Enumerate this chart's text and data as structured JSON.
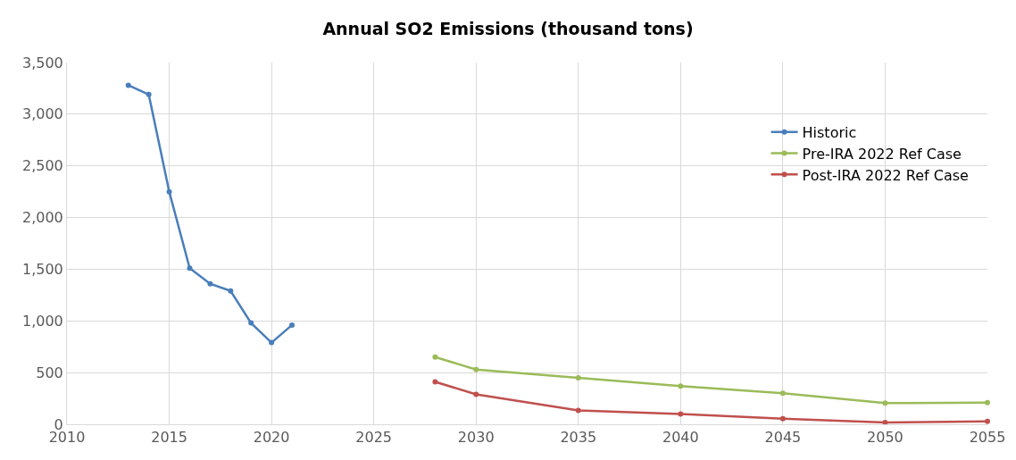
{
  "chart_data": {
    "type": "line",
    "title": "Annual SO2 Emissions (thousand tons)",
    "series": [
      {
        "name": "Historic",
        "color": "#4a7ebb",
        "x": [
          2013,
          2014,
          2015,
          2016,
          2017,
          2018,
          2019,
          2020,
          2021
        ],
        "values": [
          3280,
          3190,
          2250,
          1510,
          1360,
          1290,
          980,
          790,
          960
        ]
      },
      {
        "name": "Pre-IRA 2022 Ref Case",
        "color": "#9bbb59",
        "x": [
          2028,
          2030,
          2035,
          2040,
          2045,
          2050,
          2055
        ],
        "values": [
          650,
          530,
          450,
          370,
          300,
          205,
          210
        ]
      },
      {
        "name": "Post-IRA 2022 Ref Case",
        "color": "#c0504d",
        "x": [
          2028,
          2030,
          2035,
          2040,
          2045,
          2050,
          2055
        ],
        "values": [
          410,
          290,
          135,
          100,
          55,
          18,
          28
        ]
      }
    ],
    "xlim": [
      2010,
      2055
    ],
    "xticks": [
      2010,
      2015,
      2020,
      2025,
      2030,
      2035,
      2040,
      2045,
      2050,
      2055
    ],
    "ylim": [
      0,
      3500
    ],
    "yticks": [
      {
        "value": 0,
        "label": "0"
      },
      {
        "value": 500,
        "label": "500"
      },
      {
        "value": 1000,
        "label": "1,000"
      },
      {
        "value": 1500,
        "label": "1,500"
      },
      {
        "value": 2000,
        "label": "2,000"
      },
      {
        "value": 2500,
        "label": "2,500"
      },
      {
        "value": 3000,
        "label": "3,000"
      },
      {
        "value": 3500,
        "label": "3,500"
      }
    ],
    "grid": true,
    "legend": "top right",
    "marker": "circle",
    "line_style": "solid"
  }
}
